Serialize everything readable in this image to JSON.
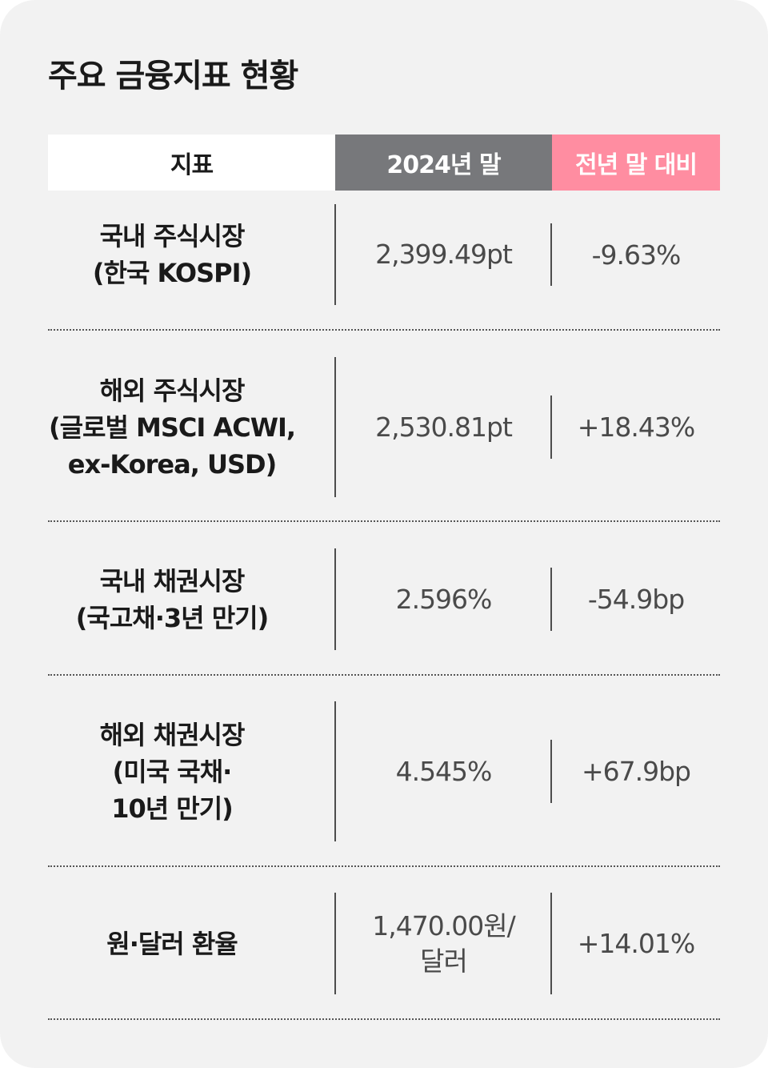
{
  "title": "주요 금융지표 현황",
  "header": {
    "col1": "지표",
    "col2": "2024년 말",
    "col3": "전년 말 대비"
  },
  "colors": {
    "background": "#f2f2f2",
    "header_gray": "#77787b",
    "header_pink": "#ff8da1"
  },
  "rows": [
    {
      "label": "국내 주식시장\n(한국 KOSPI)",
      "value": "2,399.49pt",
      "change": "-9.63%"
    },
    {
      "label": "해외 주식시장\n(글로벌 MSCI ACWI,\nex-Korea, USD)",
      "value": "2,530.81pt",
      "change": "+18.43%"
    },
    {
      "label": "국내 채권시장\n(국고채·3년 만기)",
      "value": "2.596%",
      "change": "-54.9bp"
    },
    {
      "label": "해외 채권시장\n(미국 국채·\n10년 만기)",
      "value": "4.545%",
      "change": "+67.9bp"
    },
    {
      "label": "원·달러 환율",
      "value": "1,470.00원/\n달러",
      "change": "+14.01%"
    }
  ]
}
